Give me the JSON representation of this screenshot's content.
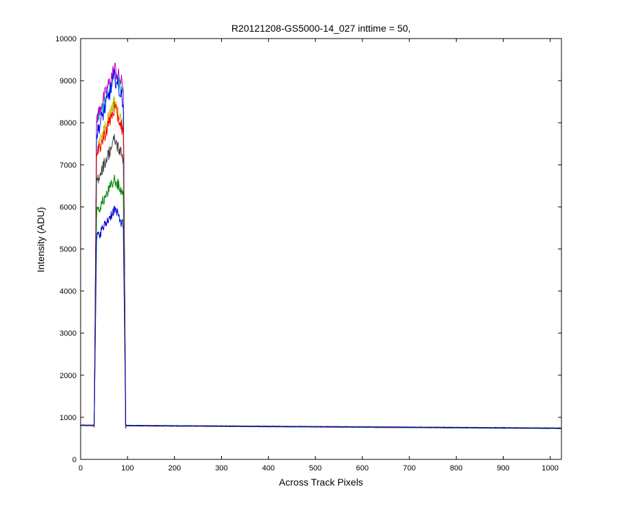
{
  "chart_data": {
    "type": "line",
    "title": "R20121208-GS5000-14_027 inttime = 50,",
    "xlabel": "Across Track Pixels",
    "ylabel": "Intensity (ADU)",
    "xlim": [
      0,
      1024
    ],
    "ylim": [
      0,
      10000
    ],
    "x_ticks": [
      0,
      100,
      200,
      300,
      400,
      500,
      600,
      700,
      800,
      900,
      1000
    ],
    "y_ticks": [
      0,
      1000,
      2000,
      3000,
      4000,
      5000,
      6000,
      7000,
      8000,
      9000,
      10000
    ],
    "x_tick_labels": [
      "0",
      "100",
      "200",
      "300",
      "400",
      "500",
      "600",
      "700",
      "800",
      "900",
      "1000"
    ],
    "y_tick_labels": [
      "0",
      "1000",
      "2000",
      "3000",
      "4000",
      "5000",
      "6000",
      "7000",
      "8000",
      "9000",
      "10000"
    ],
    "grid": false,
    "legend": "none",
    "baseline": {
      "start": 810,
      "end": 740
    },
    "pulse": {
      "rise_start": 29,
      "rise_end": 34,
      "fall_start": 91,
      "fall_end": 96
    },
    "series": [
      {
        "color": "#00bfbf",
        "peak_start": 8000,
        "peak_max": 9150,
        "peak_end": 8700
      },
      {
        "color": "#bf00bf",
        "peak_start": 8100,
        "peak_max": 9300,
        "peak_end": 8850
      },
      {
        "color": "#0000ff",
        "peak_start": 7700,
        "peak_max": 9100,
        "peak_end": 8500
      },
      {
        "color": "#bfbf00",
        "peak_start": 7300,
        "peak_max": 8500,
        "peak_end": 7900
      },
      {
        "color": "#ff0000",
        "peak_start": 7200,
        "peak_max": 8350,
        "peak_end": 7800
      },
      {
        "color": "#404040",
        "peak_start": 6600,
        "peak_max": 7600,
        "peak_end": 7150
      },
      {
        "color": "#008000",
        "peak_start": 5850,
        "peak_max": 6650,
        "peak_end": 6300
      },
      {
        "color": "#0000cd",
        "peak_start": 5250,
        "peak_max": 5950,
        "peak_end": 5550
      }
    ]
  }
}
